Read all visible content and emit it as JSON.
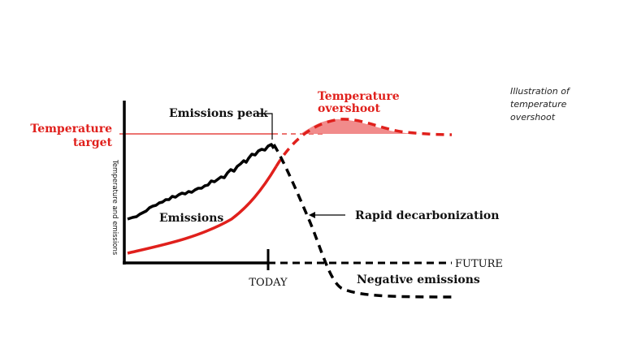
{
  "chart_data": {
    "type": "line",
    "caption": [
      "Illustration of",
      "temperature",
      "overshoot"
    ],
    "ylabel": "Temperature and emissions",
    "x_ticks": {
      "today": "TODAY",
      "future": "FUTURE"
    },
    "temperature_target": {
      "lines": [
        "Temperature",
        "target"
      ],
      "color": "#e0201c"
    },
    "annotations": {
      "emissions_peak": "Emissions peak",
      "overshoot": [
        "Temperature",
        "overshoot"
      ],
      "emissions": "Emissions",
      "rapid_decarbonization": "Rapid decarbonization",
      "negative_emissions": "Negative emissions"
    },
    "colors": {
      "emissions": "#000000",
      "temperature": "#e0201c",
      "overshoot_fill": "#f07e7e"
    }
  }
}
